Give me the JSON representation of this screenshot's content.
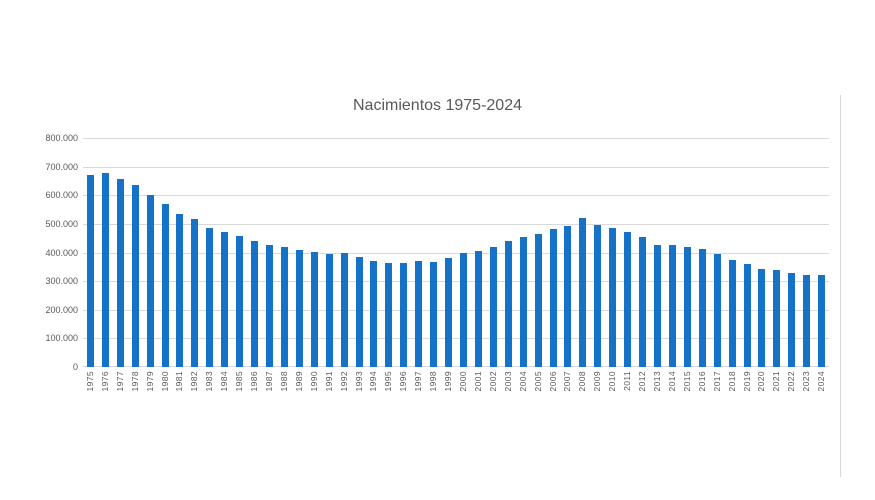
{
  "chart": {
    "colors": {
      "bar": "#1572C6",
      "gridline": "#D9D9D9",
      "text": "#595959"
    }
  },
  "chart_data": {
    "type": "bar",
    "title": "Nacimientos 1975-2024",
    "xlabel": "",
    "ylabel": "",
    "categories": [
      "1975",
      "1976",
      "1977",
      "1978",
      "1979",
      "1980",
      "1981",
      "1982",
      "1983",
      "1984",
      "1985",
      "1986",
      "1987",
      "1988",
      "1989",
      "1990",
      "1991",
      "1992",
      "1993",
      "1994",
      "1995",
      "1996",
      "1997",
      "1998",
      "1999",
      "2000",
      "2001",
      "2002",
      "2003",
      "2004",
      "2005",
      "2006",
      "2007",
      "2008",
      "2009",
      "2010",
      "2011",
      "2012",
      "2013",
      "2014",
      "2015",
      "2016",
      "2017",
      "2018",
      "2019",
      "2020",
      "2021",
      "2022",
      "2023",
      "2024"
    ],
    "values": [
      669378,
      677456,
      656357,
      636892,
      601992,
      571018,
      533008,
      515706,
      485352,
      473281,
      456298,
      438750,
      426782,
      418919,
      408434,
      401425,
      395989,
      396747,
      385786,
      370148,
      363469,
      362626,
      369035,
      365193,
      380130,
      397632,
      406380,
      418846,
      441881,
      454591,
      466371,
      482957,
      492527,
      519779,
      494997,
      486575,
      471999,
      454648,
      425715,
      427595,
      420290,
      410583,
      393181,
      372777,
      360617,
      341315,
      337380,
      329812,
      320656,
      322034
    ],
    "ylim": [
      0,
      800000
    ],
    "ytick_interval": 100000,
    "ytick_labels": [
      "0",
      "100.000",
      "200.000",
      "300.000",
      "400.000",
      "500.000",
      "600.000",
      "700.000",
      "800.000"
    ],
    "grid": "horizontal",
    "legend": "none",
    "bar_color": "#1572C6"
  }
}
